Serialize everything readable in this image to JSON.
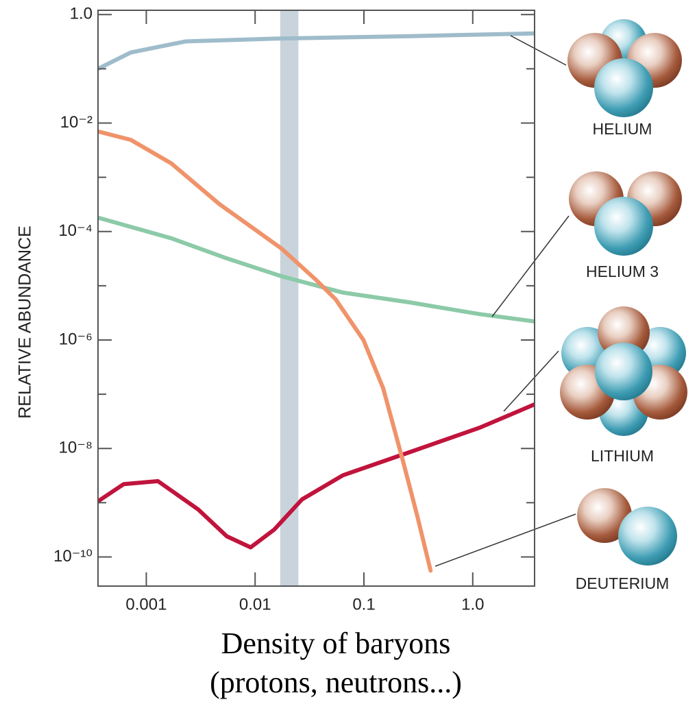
{
  "chart_data": {
    "type": "line",
    "xlabel": [
      "Density of baryons",
      "(protons, neutrons...)"
    ],
    "ylabel": "RELATIVE ABUNDANCE",
    "log_x": true,
    "log_y": true,
    "xlim": [
      0.00036,
      3.7
    ],
    "ylim": [
      2.9e-11,
      1.2
    ],
    "xticks": [
      0.001,
      0.01,
      0.1,
      {
        "value": 1,
        "label": "1.0"
      }
    ],
    "yticks": [
      {
        "value": 1,
        "label": "1.0"
      },
      {
        "value": 0.01,
        "label": "10⁻²"
      },
      {
        "value": 0.0001,
        "label": "10⁻⁴"
      },
      {
        "value": 1e-06,
        "label": "10⁻⁶"
      },
      {
        "value": 1e-08,
        "label": "10⁻⁸"
      },
      {
        "value": 1e-10,
        "label": "10⁻¹⁰"
      }
    ],
    "yminor_ticks": [
      0.1,
      0.001,
      1e-05,
      1e-07,
      1e-09
    ],
    "band": [
      0.017,
      0.025
    ],
    "band_color": "#c9d3dc",
    "series": [
      {
        "name": "HELIUM",
        "color": "#9fbccb",
        "x": [
          0.00036,
          0.00072,
          0.0023,
          0.015,
          0.27,
          3.7
        ],
        "values": [
          0.1,
          0.2,
          0.32,
          0.36,
          0.4,
          0.45
        ]
      },
      {
        "name": "HELIUM 3",
        "color": "#8ccaa8",
        "x": [
          0.00036,
          0.0017,
          0.0055,
          0.0174,
          0.064,
          0.27,
          1.15,
          3.7
        ],
        "values": [
          0.00018,
          7.5e-05,
          3.2e-05,
          1.5e-05,
          7.5e-06,
          4.9e-06,
          3e-06,
          2.2e-06
        ]
      },
      {
        "name": "LITHIUM",
        "color": "#c0143c",
        "x": [
          0.00036,
          0.00062,
          0.00128,
          0.003,
          0.0055,
          0.0091,
          0.015,
          0.027,
          0.064,
          0.27,
          1.15,
          3.7
        ],
        "values": [
          1.06e-09,
          2.2e-09,
          2.5e-09,
          7.5e-10,
          2.4e-10,
          1.5e-10,
          3.2e-10,
          1.15e-09,
          3.2e-09,
          8.7e-09,
          2.4e-08,
          6.5e-08
        ]
      },
      {
        "name": "DEUTERIUM",
        "color": "#f0936a",
        "x": [
          0.00036,
          0.00072,
          0.0017,
          0.0047,
          0.0174,
          0.036,
          0.055,
          0.099,
          0.15,
          0.23,
          0.31,
          0.41
        ],
        "values": [
          0.007,
          0.0049,
          0.0018,
          0.00032,
          4.9e-05,
          1.3e-05,
          5.6e-06,
          1e-06,
          1.3e-07,
          5.6e-09,
          5.6e-10,
          5.6e-11
        ]
      }
    ]
  }
}
